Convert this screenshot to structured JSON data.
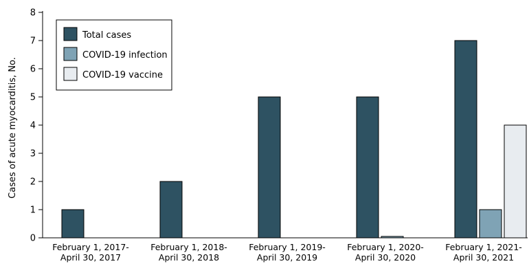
{
  "chart_data": {
    "type": "bar",
    "title": "",
    "xlabel": "",
    "ylabel": "Cases of acute myocarditis, No.",
    "ylim": [
      0,
      8
    ],
    "yticks": [
      0,
      1,
      2,
      3,
      4,
      5,
      6,
      7,
      8
    ],
    "grid": false,
    "legend_position": "top-left",
    "categories": [
      [
        "February 1, 2017-",
        "April 30, 2017"
      ],
      [
        "February 1, 2018-",
        "April 30, 2018"
      ],
      [
        "February 1, 2019-",
        "April 30, 2019"
      ],
      [
        "February 1, 2020-",
        "April 30, 2020"
      ],
      [
        "February 1, 2021-",
        "April 30, 2021"
      ]
    ],
    "series": [
      {
        "name": "Total cases",
        "color": "#2e5262",
        "values": [
          1,
          2,
          5,
          5,
          7
        ]
      },
      {
        "name": "COVID-19 infection",
        "color": "#7fa3b5",
        "values": [
          0,
          0,
          0,
          0.05,
          1
        ]
      },
      {
        "name": "COVID-19 vaccine",
        "color": "#e8ecf0",
        "values": [
          0,
          0,
          0,
          0,
          4
        ]
      }
    ]
  }
}
